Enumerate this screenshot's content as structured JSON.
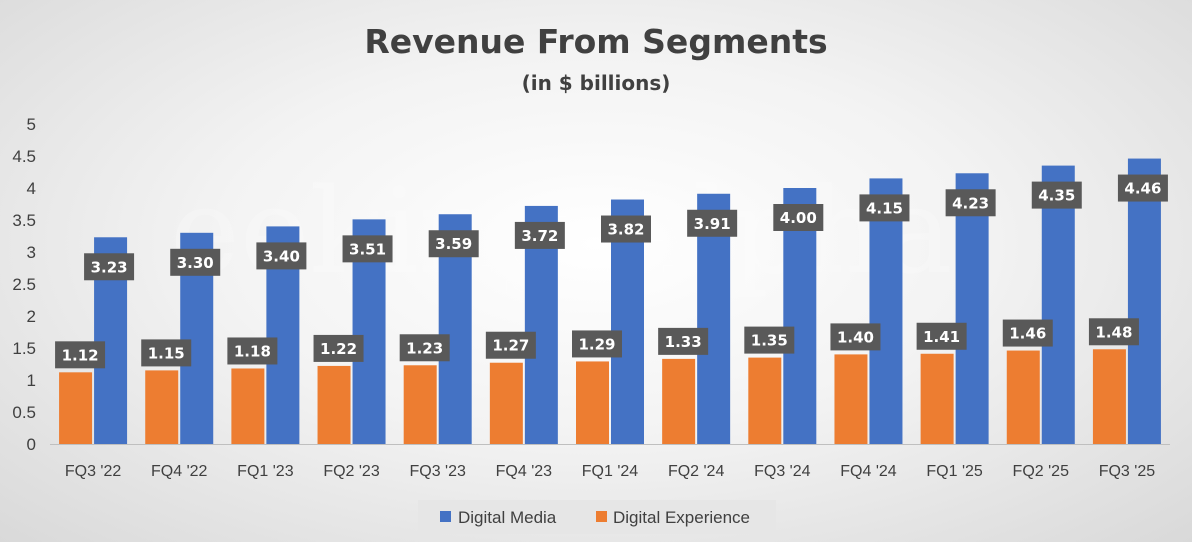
{
  "chart_data": {
    "type": "bar",
    "title": "Revenue From Segments",
    "subtitle": "(in $ billions)",
    "xlabel": "",
    "ylabel": "",
    "ylim": [
      0,
      5
    ],
    "yticks": [
      "0",
      "0.5",
      "1",
      "1.5",
      "2",
      "2.5",
      "3",
      "3.5",
      "4",
      "4.5",
      "5"
    ],
    "grid": false,
    "legend_position": "bottom",
    "categories": [
      "FQ3 '22",
      "FQ4 '22",
      "FQ1 '23",
      "FQ2 '23",
      "FQ3 '23",
      "FQ4 '23",
      "FQ1 '24",
      "FQ2 '24",
      "FQ3 '24",
      "FQ4 '24",
      "FQ1 '25",
      "FQ2 '25",
      "FQ3 '25"
    ],
    "series": [
      {
        "name": "Digital Experience",
        "color": "#ed7d31",
        "values": [
          1.12,
          1.15,
          1.18,
          1.22,
          1.23,
          1.27,
          1.29,
          1.33,
          1.35,
          1.4,
          1.41,
          1.46,
          1.48
        ],
        "labels": [
          "1.12",
          "1.15",
          "1.18",
          "1.22",
          "1.23",
          "1.27",
          "1.29",
          "1.33",
          "1.35",
          "1.40",
          "1.41",
          "1.46",
          "1.48"
        ]
      },
      {
        "name": "Digital Media",
        "color": "#4472c4",
        "values": [
          3.23,
          3.3,
          3.4,
          3.51,
          3.59,
          3.72,
          3.82,
          3.91,
          4.0,
          4.15,
          4.23,
          4.35,
          4.46
        ],
        "labels": [
          "3.23",
          "3.30",
          "3.40",
          "3.51",
          "3.59",
          "3.72",
          "3.82",
          "3.91",
          "4.00",
          "4.15",
          "4.23",
          "4.35",
          "4.46"
        ]
      }
    ],
    "legend": [
      "Digital Media",
      "Digital Experience"
    ],
    "label_box_color": "#595959"
  }
}
